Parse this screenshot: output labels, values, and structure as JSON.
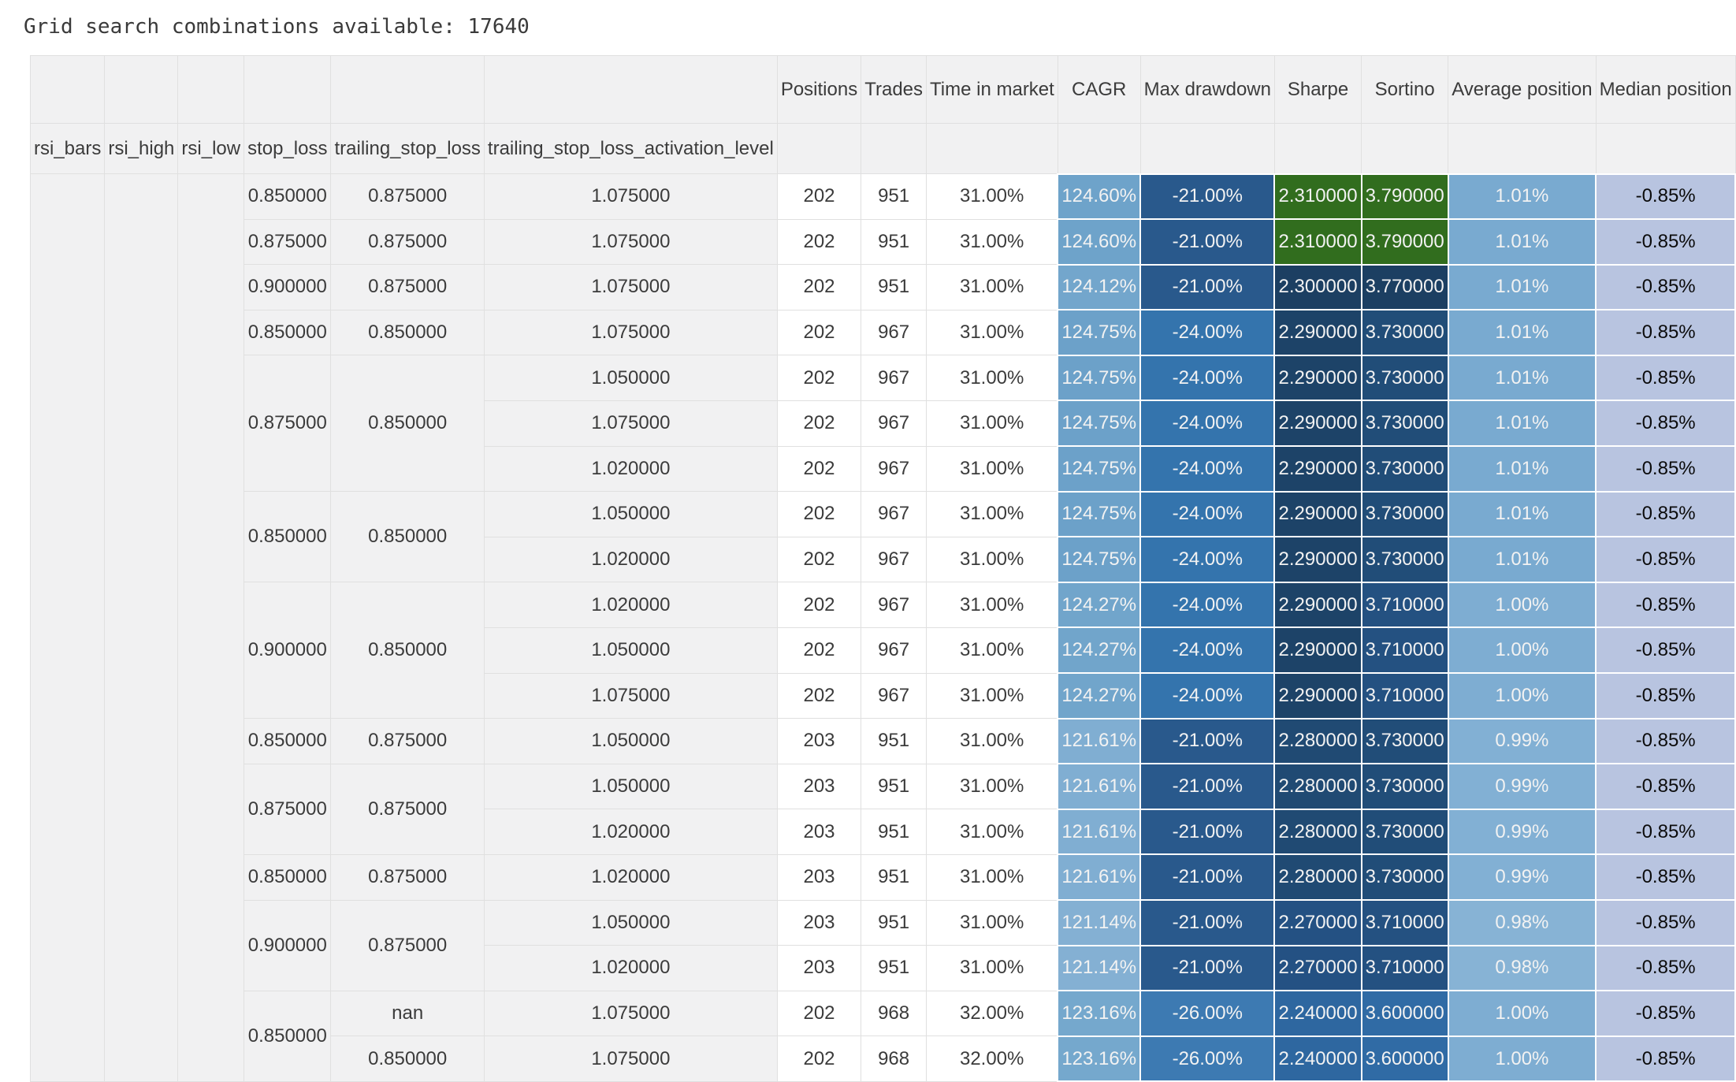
{
  "title": "Grid search combinations available: 17640",
  "colors": {
    "header-bg": "#f1f1f2",
    "grid-border": "#e0e0e0",
    "body-text": "#3b3b3b",
    "white-text": "#f2f2f2",
    "dark-text": "#0b0b0b",
    "highlight-green": "#316d1e"
  },
  "table": {
    "index_headers": [
      "rsi_bars",
      "rsi_high",
      "rsi_low",
      "stop_loss",
      "trailing_stop_loss",
      "trailing_stop_loss_activation_level"
    ],
    "value_headers": [
      "Positions",
      "Trades",
      "Time in market",
      "CAGR",
      "Max drawdown",
      "Sharpe",
      "Sortino",
      "Average position",
      "Median position"
    ],
    "rsi_spacer_count": 3,
    "rows": [
      {
        "idx": [
          [
            "0.850000",
            1
          ],
          [
            "0.875000",
            1
          ],
          [
            "1.075000",
            1
          ]
        ],
        "vals": [
          "202",
          "951",
          "31.00%"
        ],
        "grad": [
          [
            "124.60%",
            "#6ea3ca"
          ],
          [
            "-21.00%",
            "#29598c"
          ],
          [
            "2.310000",
            "#316d1e"
          ],
          [
            "3.790000",
            "#316d1e"
          ],
          [
            "1.01%",
            "#79aad0"
          ],
          [
            "-0.85%",
            "#b8c4e0",
            "dark"
          ]
        ]
      },
      {
        "idx": [
          [
            "0.875000",
            1
          ],
          [
            "0.875000",
            1
          ],
          [
            "1.075000",
            1
          ]
        ],
        "vals": [
          "202",
          "951",
          "31.00%"
        ],
        "grad": [
          [
            "124.60%",
            "#6ea3ca"
          ],
          [
            "-21.00%",
            "#29598c"
          ],
          [
            "2.310000",
            "#316d1e"
          ],
          [
            "3.790000",
            "#316d1e"
          ],
          [
            "1.01%",
            "#79aad0"
          ],
          [
            "-0.85%",
            "#b8c4e0",
            "dark"
          ]
        ]
      },
      {
        "idx": [
          [
            "0.900000",
            1
          ],
          [
            "0.875000",
            1
          ],
          [
            "1.075000",
            1
          ]
        ],
        "vals": [
          "202",
          "951",
          "31.00%"
        ],
        "grad": [
          [
            "124.12%",
            "#73a6cc"
          ],
          [
            "-21.00%",
            "#29598c"
          ],
          [
            "2.300000",
            "#1c3f62"
          ],
          [
            "3.770000",
            "#1c3f62"
          ],
          [
            "1.01%",
            "#79aad0"
          ],
          [
            "-0.85%",
            "#b8c4e0",
            "dark"
          ]
        ]
      },
      {
        "idx": [
          [
            "0.850000",
            1
          ],
          [
            "0.850000",
            1
          ],
          [
            "1.075000",
            1
          ]
        ],
        "vals": [
          "202",
          "967",
          "31.00%"
        ],
        "grad": [
          [
            "124.75%",
            "#6ca1c9"
          ],
          [
            "-24.00%",
            "#3474ad"
          ],
          [
            "2.290000",
            "#1d4368"
          ],
          [
            "3.730000",
            "#214d78"
          ],
          [
            "1.01%",
            "#79aad0"
          ],
          [
            "-0.85%",
            "#b8c4e0",
            "dark"
          ]
        ]
      },
      {
        "idx": [
          [
            "0.875000",
            3
          ],
          [
            "0.850000",
            3
          ],
          [
            "1.050000",
            1
          ]
        ],
        "vals": [
          "202",
          "967",
          "31.00%"
        ],
        "grad": [
          [
            "124.75%",
            "#6ca1c9"
          ],
          [
            "-24.00%",
            "#3474ad"
          ],
          [
            "2.290000",
            "#1d4368"
          ],
          [
            "3.730000",
            "#214d78"
          ],
          [
            "1.01%",
            "#79aad0"
          ],
          [
            "-0.85%",
            "#b8c4e0",
            "dark"
          ]
        ]
      },
      {
        "idx": [
          null,
          null,
          [
            "1.075000",
            1
          ]
        ],
        "vals": [
          "202",
          "967",
          "31.00%"
        ],
        "grad": [
          [
            "124.75%",
            "#6ca1c9"
          ],
          [
            "-24.00%",
            "#3474ad"
          ],
          [
            "2.290000",
            "#1d4368"
          ],
          [
            "3.730000",
            "#214d78"
          ],
          [
            "1.01%",
            "#79aad0"
          ],
          [
            "-0.85%",
            "#b8c4e0",
            "dark"
          ]
        ]
      },
      {
        "idx": [
          null,
          null,
          [
            "1.020000",
            1
          ]
        ],
        "vals": [
          "202",
          "967",
          "31.00%"
        ],
        "grad": [
          [
            "124.75%",
            "#6ca1c9"
          ],
          [
            "-24.00%",
            "#3474ad"
          ],
          [
            "2.290000",
            "#1d4368"
          ],
          [
            "3.730000",
            "#214d78"
          ],
          [
            "1.01%",
            "#79aad0"
          ],
          [
            "-0.85%",
            "#b8c4e0",
            "dark"
          ]
        ]
      },
      {
        "idx": [
          [
            "0.850000",
            2
          ],
          [
            "0.850000",
            2
          ],
          [
            "1.050000",
            1
          ]
        ],
        "vals": [
          "202",
          "967",
          "31.00%"
        ],
        "grad": [
          [
            "124.75%",
            "#6ca1c9"
          ],
          [
            "-24.00%",
            "#3474ad"
          ],
          [
            "2.290000",
            "#1d4368"
          ],
          [
            "3.730000",
            "#214d78"
          ],
          [
            "1.01%",
            "#79aad0"
          ],
          [
            "-0.85%",
            "#b8c4e0",
            "dark"
          ]
        ]
      },
      {
        "idx": [
          null,
          null,
          [
            "1.020000",
            1
          ]
        ],
        "vals": [
          "202",
          "967",
          "31.00%"
        ],
        "grad": [
          [
            "124.75%",
            "#6ca1c9"
          ],
          [
            "-24.00%",
            "#3474ad"
          ],
          [
            "2.290000",
            "#1d4368"
          ],
          [
            "3.730000",
            "#214d78"
          ],
          [
            "1.01%",
            "#79aad0"
          ],
          [
            "-0.85%",
            "#b8c4e0",
            "dark"
          ]
        ]
      },
      {
        "idx": [
          [
            "0.900000",
            3
          ],
          [
            "0.850000",
            3
          ],
          [
            "1.020000",
            1
          ]
        ],
        "vals": [
          "202",
          "967",
          "31.00%"
        ],
        "grad": [
          [
            "124.27%",
            "#71a5cb"
          ],
          [
            "-24.00%",
            "#3474ad"
          ],
          [
            "2.290000",
            "#1d4368"
          ],
          [
            "3.710000",
            "#245181"
          ],
          [
            "1.00%",
            "#7eadd2"
          ],
          [
            "-0.85%",
            "#b8c4e0",
            "dark"
          ]
        ]
      },
      {
        "idx": [
          null,
          null,
          [
            "1.050000",
            1
          ]
        ],
        "vals": [
          "202",
          "967",
          "31.00%"
        ],
        "grad": [
          [
            "124.27%",
            "#71a5cb"
          ],
          [
            "-24.00%",
            "#3474ad"
          ],
          [
            "2.290000",
            "#1d4368"
          ],
          [
            "3.710000",
            "#245181"
          ],
          [
            "1.00%",
            "#7eadd2"
          ],
          [
            "-0.85%",
            "#b8c4e0",
            "dark"
          ]
        ]
      },
      {
        "idx": [
          null,
          null,
          [
            "1.075000",
            1
          ]
        ],
        "vals": [
          "202",
          "967",
          "31.00%"
        ],
        "grad": [
          [
            "124.27%",
            "#71a5cb"
          ],
          [
            "-24.00%",
            "#3474ad"
          ],
          [
            "2.290000",
            "#1d4368"
          ],
          [
            "3.710000",
            "#245181"
          ],
          [
            "1.00%",
            "#7eadd2"
          ],
          [
            "-0.85%",
            "#b8c4e0",
            "dark"
          ]
        ]
      },
      {
        "idx": [
          [
            "0.850000",
            1
          ],
          [
            "0.875000",
            1
          ],
          [
            "1.050000",
            1
          ]
        ],
        "vals": [
          "203",
          "951",
          "31.00%"
        ],
        "grad": [
          [
            "121.61%",
            "#80aed2"
          ],
          [
            "-21.00%",
            "#29598c"
          ],
          [
            "2.280000",
            "#204a73"
          ],
          [
            "3.730000",
            "#214d78"
          ],
          [
            "0.99%",
            "#82b0d4"
          ],
          [
            "-0.85%",
            "#b8c4e0",
            "dark"
          ]
        ]
      },
      {
        "idx": [
          [
            "0.875000",
            2
          ],
          [
            "0.875000",
            2
          ],
          [
            "1.050000",
            1
          ]
        ],
        "vals": [
          "203",
          "951",
          "31.00%"
        ],
        "grad": [
          [
            "121.61%",
            "#80aed2"
          ],
          [
            "-21.00%",
            "#29598c"
          ],
          [
            "2.280000",
            "#204a73"
          ],
          [
            "3.730000",
            "#214d78"
          ],
          [
            "0.99%",
            "#82b0d4"
          ],
          [
            "-0.85%",
            "#b8c4e0",
            "dark"
          ]
        ]
      },
      {
        "idx": [
          null,
          null,
          [
            "1.020000",
            1
          ]
        ],
        "vals": [
          "203",
          "951",
          "31.00%"
        ],
        "grad": [
          [
            "121.61%",
            "#80aed2"
          ],
          [
            "-21.00%",
            "#29598c"
          ],
          [
            "2.280000",
            "#204a73"
          ],
          [
            "3.730000",
            "#214d78"
          ],
          [
            "0.99%",
            "#82b0d4"
          ],
          [
            "-0.85%",
            "#b8c4e0",
            "dark"
          ]
        ]
      },
      {
        "idx": [
          [
            "0.850000",
            1
          ],
          [
            "0.875000",
            1
          ],
          [
            "1.020000",
            1
          ]
        ],
        "vals": [
          "203",
          "951",
          "31.00%"
        ],
        "grad": [
          [
            "121.61%",
            "#80aed2"
          ],
          [
            "-21.00%",
            "#29598c"
          ],
          [
            "2.280000",
            "#204a73"
          ],
          [
            "3.730000",
            "#214d78"
          ],
          [
            "0.99%",
            "#82b0d4"
          ],
          [
            "-0.85%",
            "#b8c4e0",
            "dark"
          ]
        ]
      },
      {
        "idx": [
          [
            "0.900000",
            2
          ],
          [
            "0.875000",
            2
          ],
          [
            "1.050000",
            1
          ]
        ],
        "vals": [
          "203",
          "951",
          "31.00%"
        ],
        "grad": [
          [
            "121.14%",
            "#84b0d3"
          ],
          [
            "-21.00%",
            "#29598c"
          ],
          [
            "2.270000",
            "#245183"
          ],
          [
            "3.710000",
            "#245181"
          ],
          [
            "0.98%",
            "#87b3d5"
          ],
          [
            "-0.85%",
            "#b8c4e0",
            "dark"
          ]
        ]
      },
      {
        "idx": [
          null,
          null,
          [
            "1.020000",
            1
          ]
        ],
        "vals": [
          "203",
          "951",
          "31.00%"
        ],
        "grad": [
          [
            "121.14%",
            "#84b0d3"
          ],
          [
            "-21.00%",
            "#29598c"
          ],
          [
            "2.270000",
            "#245183"
          ],
          [
            "3.710000",
            "#245181"
          ],
          [
            "0.98%",
            "#87b3d5"
          ],
          [
            "-0.85%",
            "#b8c4e0",
            "dark"
          ]
        ]
      },
      {
        "idx": [
          [
            "0.850000",
            2
          ],
          [
            "nan",
            1
          ],
          [
            "1.075000",
            1
          ]
        ],
        "vals": [
          "202",
          "968",
          "32.00%"
        ],
        "grad": [
          [
            "123.16%",
            "#75a8cd"
          ],
          [
            "-26.00%",
            "#3d7ab2"
          ],
          [
            "2.240000",
            "#2e67a0"
          ],
          [
            "3.600000",
            "#306ba5"
          ],
          [
            "1.00%",
            "#7eadd2"
          ],
          [
            "-0.85%",
            "#b8c4e0",
            "dark"
          ]
        ]
      },
      {
        "idx": [
          null,
          [
            "0.850000",
            1
          ],
          [
            "1.075000",
            1
          ]
        ],
        "vals": [
          "202",
          "968",
          "32.00%"
        ],
        "grad": [
          [
            "123.16%",
            "#75a8cd"
          ],
          [
            "-26.00%",
            "#3d7ab2"
          ],
          [
            "2.240000",
            "#2e67a0"
          ],
          [
            "3.600000",
            "#306ba5"
          ],
          [
            "1.00%",
            "#7eadd2"
          ],
          [
            "-0.85%",
            "#b8c4e0",
            "dark"
          ]
        ]
      }
    ]
  }
}
